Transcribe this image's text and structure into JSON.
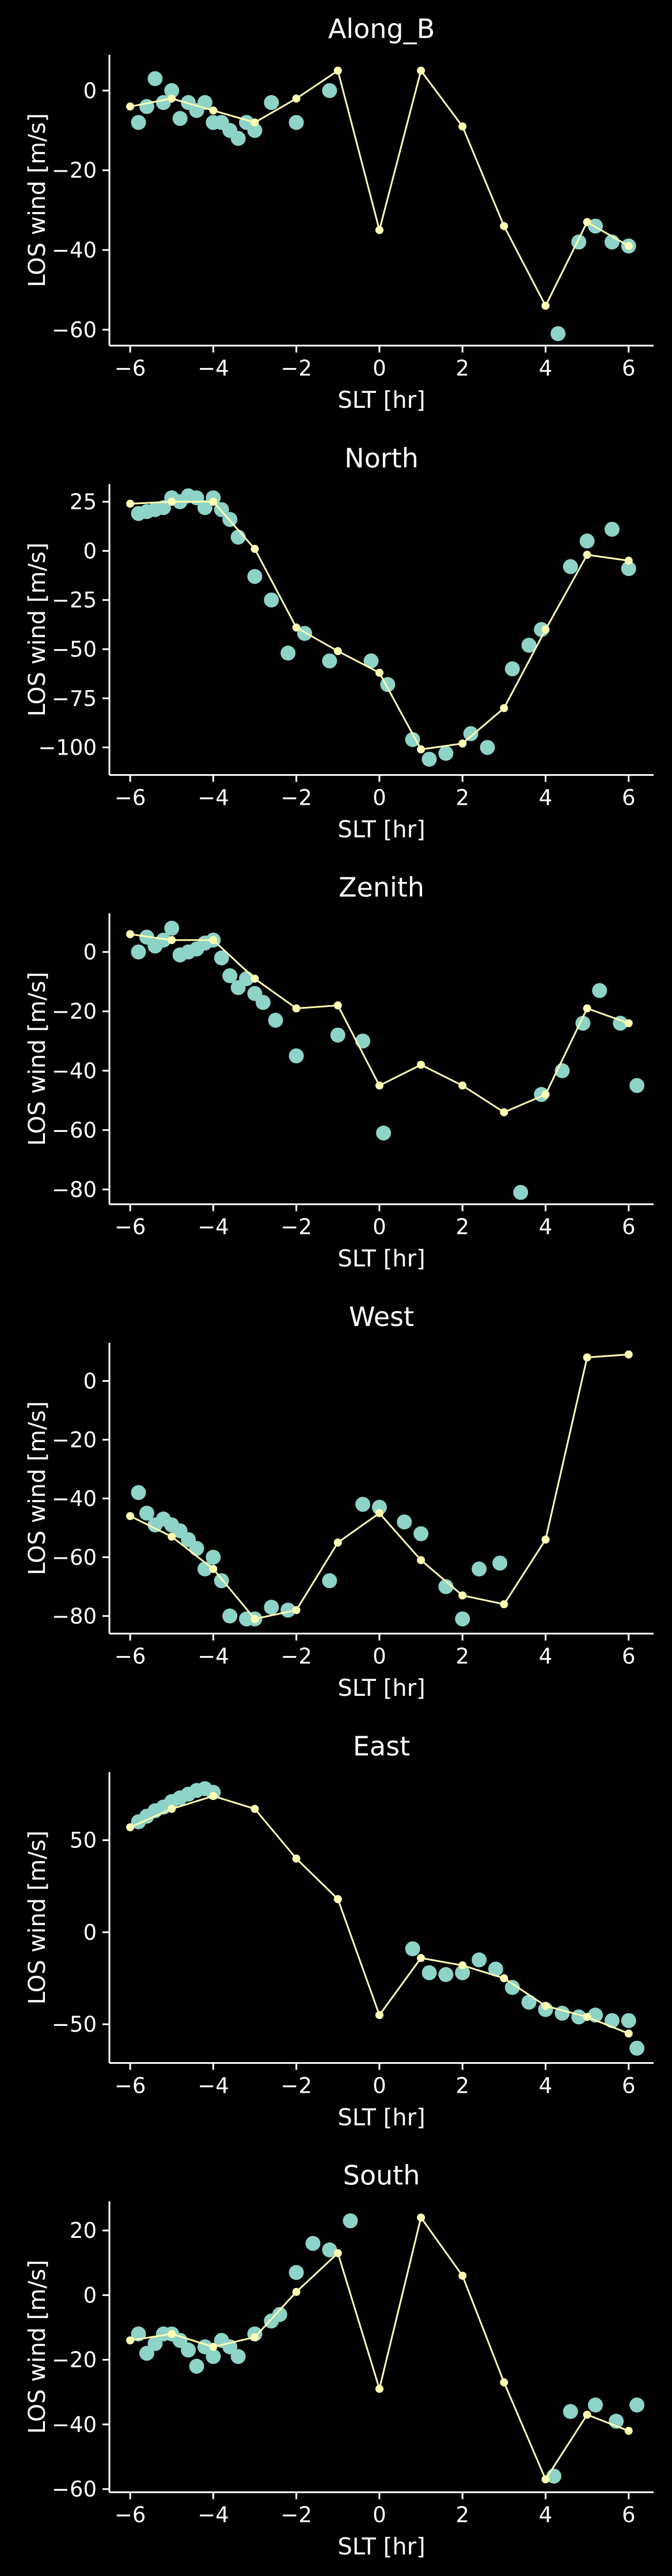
{
  "chart_data": [
    {
      "type": "scatter",
      "title": "Along_B",
      "xlabel": "SLT [hr]",
      "ylabel": "LOS wind [m/s]",
      "xlim": [
        -6.5,
        6.6
      ],
      "ylim": [
        -64,
        9
      ],
      "xticks": [
        -6,
        -4,
        -2,
        0,
        2,
        4,
        6
      ],
      "yticks": [
        -60,
        -40,
        -20,
        0
      ],
      "colors": {
        "scatter": "#8dd3c7",
        "line": "#ffffb3"
      },
      "scatter": {
        "x": [
          -5.8,
          -5.6,
          -5.4,
          -5.2,
          -5.0,
          -4.8,
          -4.6,
          -4.4,
          -4.2,
          -4.0,
          -3.8,
          -3.6,
          -3.4,
          -3.2,
          -3.0,
          -2.6,
          -2.0,
          -1.2,
          4.3,
          4.8,
          5.2,
          5.6,
          6.0
        ],
        "y": [
          -8,
          -4,
          3,
          -3,
          0,
          -7,
          -3,
          -5,
          -3,
          -8,
          -8,
          -10,
          -12,
          -8,
          -10,
          -3,
          -8,
          0,
          -61,
          -38,
          -34,
          -38,
          -39
        ]
      },
      "line": {
        "x": [
          -6,
          -5,
          -4,
          -3,
          -2,
          -1,
          0,
          1,
          2,
          3,
          4,
          5,
          6
        ],
        "y": [
          -4,
          -2,
          -5,
          -8,
          -2,
          5,
          -35,
          5,
          -9,
          -34,
          -54,
          -33,
          -39
        ]
      }
    },
    {
      "type": "scatter",
      "title": "North",
      "xlabel": "SLT [hr]",
      "ylabel": "LOS wind [m/s]",
      "xlim": [
        -6.5,
        6.6
      ],
      "ylim": [
        -114,
        34
      ],
      "xticks": [
        -6,
        -4,
        -2,
        0,
        2,
        4,
        6
      ],
      "yticks": [
        -100,
        -75,
        -50,
        -25,
        0,
        25
      ],
      "colors": {
        "scatter": "#8dd3c7",
        "line": "#ffffb3"
      },
      "scatter": {
        "x": [
          -5.8,
          -5.6,
          -5.4,
          -5.2,
          -5.0,
          -4.8,
          -4.6,
          -4.4,
          -4.2,
          -4.0,
          -3.8,
          -3.6,
          -3.4,
          -3.0,
          -2.6,
          -2.2,
          -1.8,
          -1.2,
          -0.2,
          0.2,
          0.8,
          1.2,
          1.6,
          2.2,
          2.6,
          3.2,
          3.6,
          3.9,
          4.6,
          5.0,
          5.6,
          6.0
        ],
        "y": [
          19,
          20,
          21,
          22,
          27,
          25,
          28,
          27,
          22,
          27,
          21,
          16,
          7,
          -13,
          -25,
          -52,
          -42,
          -56,
          -56,
          -68,
          -96,
          -106,
          -103,
          -93,
          -100,
          -60,
          -48,
          -40,
          -8,
          5,
          11,
          -9
        ]
      },
      "line": {
        "x": [
          -6,
          -5,
          -4,
          -3,
          -2,
          -1,
          0,
          1,
          2,
          3,
          4,
          5,
          6
        ],
        "y": [
          24,
          25,
          25,
          1,
          -39,
          -51,
          -62,
          -101,
          -98,
          -80,
          -40,
          -2,
          -5
        ]
      }
    },
    {
      "type": "scatter",
      "title": "Zenith",
      "xlabel": "SLT [hr]",
      "ylabel": "LOS wind [m/s]",
      "xlim": [
        -6.5,
        6.6
      ],
      "ylim": [
        -85,
        13
      ],
      "xticks": [
        -6,
        -4,
        -2,
        0,
        2,
        4,
        6
      ],
      "yticks": [
        -80,
        -60,
        -40,
        -20,
        0
      ],
      "colors": {
        "scatter": "#8dd3c7",
        "line": "#ffffb3"
      },
      "scatter": {
        "x": [
          -5.8,
          -5.6,
          -5.4,
          -5.2,
          -5.0,
          -4.8,
          -4.6,
          -4.4,
          -4.2,
          -4.0,
          -3.8,
          -3.6,
          -3.4,
          -3.2,
          -3.0,
          -2.8,
          -2.5,
          -2.0,
          -1.0,
          -0.4,
          0.1,
          3.4,
          3.9,
          4.4,
          4.9,
          5.3,
          5.8,
          6.2
        ],
        "y": [
          0,
          5,
          2,
          4,
          8,
          -1,
          0,
          1,
          3,
          4,
          -2,
          -8,
          -12,
          -9,
          -14,
          -17,
          -23,
          -35,
          -28,
          -30,
          -61,
          -81,
          -48,
          -40,
          -24,
          -13,
          -24,
          -45
        ]
      },
      "line": {
        "x": [
          -6,
          -5,
          -4,
          -3,
          -2,
          -1,
          0,
          1,
          2,
          3,
          4,
          5,
          6
        ],
        "y": [
          6,
          4,
          4,
          -9,
          -19,
          -18,
          -45,
          -38,
          -45,
          -54,
          -48,
          -19,
          -24
        ]
      }
    },
    {
      "type": "scatter",
      "title": "West",
      "xlabel": "SLT [hr]",
      "ylabel": "LOS wind [m/s]",
      "xlim": [
        -6.5,
        6.6
      ],
      "ylim": [
        -86,
        13
      ],
      "xticks": [
        -6,
        -4,
        -2,
        0,
        2,
        4,
        6
      ],
      "yticks": [
        -80,
        -60,
        -40,
        -20,
        0
      ],
      "colors": {
        "scatter": "#8dd3c7",
        "line": "#ffffb3"
      },
      "scatter": {
        "x": [
          -5.8,
          -5.6,
          -5.4,
          -5.2,
          -5.0,
          -4.8,
          -4.6,
          -4.4,
          -4.2,
          -4.0,
          -3.8,
          -3.6,
          -3.2,
          -3.0,
          -2.6,
          -2.2,
          -1.2,
          -0.4,
          0.0,
          0.6,
          1.0,
          1.6,
          2.0,
          2.4,
          2.9
        ],
        "y": [
          -38,
          -45,
          -49,
          -47,
          -49,
          -51,
          -54,
          -57,
          -64,
          -60,
          -68,
          -80,
          -81,
          -81,
          -77,
          -78,
          -68,
          -42,
          -43,
          -48,
          -52,
          -70,
          -81,
          -64,
          -62
        ]
      },
      "line": {
        "x": [
          -6,
          -5,
          -4,
          -3,
          -2,
          -1,
          0,
          1,
          2,
          3,
          4,
          5,
          6
        ],
        "y": [
          -46,
          -53,
          -64,
          -81,
          -78,
          -55,
          -45,
          -61,
          -73,
          -76,
          -54,
          8,
          9
        ]
      }
    },
    {
      "type": "scatter",
      "title": "East",
      "xlabel": "SLT [hr]",
      "ylabel": "LOS wind [m/s]",
      "xlim": [
        -6.5,
        6.6
      ],
      "ylim": [
        -71,
        87
      ],
      "xticks": [
        -6,
        -4,
        -2,
        0,
        2,
        4,
        6
      ],
      "yticks": [
        -50,
        0,
        50
      ],
      "colors": {
        "scatter": "#8dd3c7",
        "line": "#ffffb3"
      },
      "scatter": {
        "x": [
          -5.8,
          -5.6,
          -5.4,
          -5.2,
          -5.0,
          -4.8,
          -4.6,
          -4.4,
          -4.2,
          -4.0,
          0.8,
          1.2,
          1.6,
          2.0,
          2.4,
          2.8,
          3.2,
          3.6,
          4.0,
          4.4,
          4.8,
          5.2,
          5.6,
          6.0,
          6.2
        ],
        "y": [
          60,
          63,
          66,
          68,
          71,
          73,
          75,
          77,
          78,
          76,
          -9,
          -22,
          -23,
          -22,
          -15,
          -20,
          -30,
          -38,
          -42,
          -44,
          -46,
          -45,
          -48,
          -48,
          -63
        ]
      },
      "line": {
        "x": [
          -6,
          -5,
          -4,
          -3,
          -2,
          -1,
          0,
          1,
          2,
          3,
          4,
          5,
          6
        ],
        "y": [
          57,
          67,
          74,
          67,
          40,
          18,
          -45,
          -14,
          -18,
          -25,
          -40,
          -46,
          -55
        ]
      }
    },
    {
      "type": "scatter",
      "title": "South",
      "xlabel": "SLT [hr]",
      "ylabel": "LOS wind [m/s]",
      "xlim": [
        -6.5,
        6.6
      ],
      "ylim": [
        -61,
        29
      ],
      "xticks": [
        -6,
        -4,
        -2,
        0,
        2,
        4,
        6
      ],
      "yticks": [
        -60,
        -40,
        -20,
        0,
        20
      ],
      "colors": {
        "scatter": "#8dd3c7",
        "line": "#ffffb3"
      },
      "scatter": {
        "x": [
          -5.8,
          -5.6,
          -5.4,
          -5.2,
          -5.0,
          -4.8,
          -4.6,
          -4.4,
          -4.2,
          -4.0,
          -3.8,
          -3.6,
          -3.4,
          -3.0,
          -2.6,
          -2.4,
          -2.0,
          -1.6,
          -1.2,
          -0.7,
          4.2,
          4.6,
          5.2,
          5.7,
          6.2
        ],
        "y": [
          -12,
          -18,
          -15,
          -12,
          -12,
          -14,
          -17,
          -22,
          -16,
          -19,
          -14,
          -16,
          -19,
          -12,
          -8,
          -6,
          7,
          16,
          14,
          23,
          -56,
          -36,
          -34,
          -39,
          -34
        ]
      },
      "line": {
        "x": [
          -6,
          -5,
          -4,
          -3,
          -2,
          -1,
          0,
          1,
          2,
          3,
          4,
          5,
          6
        ],
        "y": [
          -14,
          -12,
          -16,
          -13,
          1,
          13,
          -29,
          24,
          6,
          -27,
          -57,
          -37,
          -42
        ]
      }
    }
  ]
}
